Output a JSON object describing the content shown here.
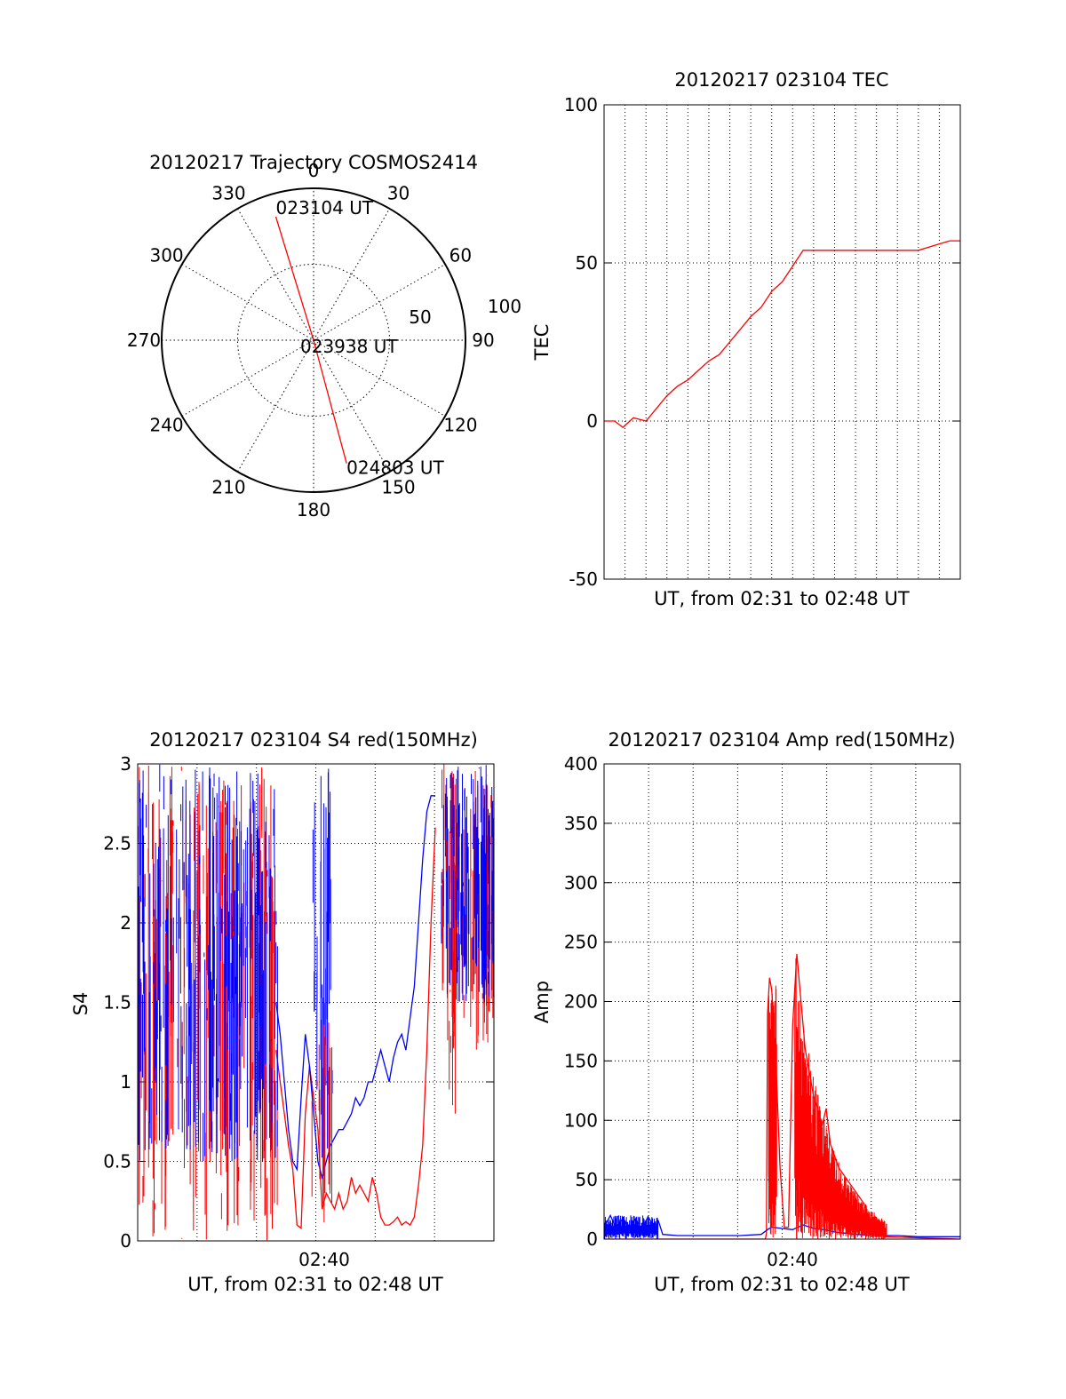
{
  "colors": {
    "red": "#ff0000",
    "blue": "#0000ff",
    "axis": "#000000",
    "grid": "#000000"
  },
  "chart_data": [
    {
      "type": "polar",
      "title": "20120217 Trajectory COSMOS2414",
      "azimuth_labels": [
        "0",
        "30",
        "60",
        "90",
        "120",
        "150",
        "180",
        "210",
        "240",
        "270",
        "300",
        "330"
      ],
      "radius_labels": [
        "50",
        "100"
      ],
      "radial_range": [
        0,
        100
      ],
      "points": [
        {
          "label": "023104 UT",
          "azimuth": 343,
          "zenith": 85
        },
        {
          "label": "023938 UT",
          "azimuth": 0,
          "zenith": 0
        },
        {
          "label": "024803 UT",
          "azimuth": 165,
          "zenith": 84
        }
      ],
      "grid": true
    },
    {
      "type": "line",
      "title": "20120217 023104 TEC",
      "xlabel": "UT, from 02:31 to 02:48 UT",
      "ylabel": "TEC",
      "ylim": [
        -50,
        100
      ],
      "yticks": [
        "100",
        "50",
        "0",
        "-50"
      ],
      "xlim_min": [
        0,
        17.0
      ],
      "grid": true,
      "series": [
        {
          "color": "red",
          "x": [
            0,
            0.5,
            0.9,
            1.4,
            2.0,
            2.5,
            3.0,
            3.5,
            4.0,
            4.5,
            5.0,
            5.5,
            6.0,
            6.5,
            7.0,
            7.5,
            8.0,
            8.5,
            9.0,
            9.5,
            10.0,
            10.5,
            11.0,
            11.5,
            12.0,
            12.5,
            13.0,
            13.5,
            14.0,
            14.5,
            15.0,
            15.5,
            16.0,
            16.5,
            17.0
          ],
          "y": [
            0,
            0,
            -2,
            1,
            0,
            4,
            8,
            11,
            13,
            16,
            19,
            21,
            25,
            29,
            33,
            36,
            41,
            44,
            49,
            54,
            54,
            54,
            54,
            54,
            54,
            54,
            54,
            54,
            54,
            54,
            54,
            55,
            56,
            57,
            57
          ]
        }
      ]
    },
    {
      "type": "line",
      "title": "20120217 023104 S4 red(150MHz)",
      "xlabel": "UT, from 02:31 to 02:48 UT",
      "ylabel": "S4",
      "ylim": [
        0,
        3
      ],
      "yticks": [
        "3",
        "2.5",
        "2",
        "1.5",
        "1",
        "0.5",
        "0"
      ],
      "xtick_label": "02:40",
      "grid": true,
      "series": [
        {
          "color": "red",
          "x": [
            6.6,
            6.8,
            7.0,
            7.2,
            7.4,
            7.6,
            7.8,
            8.0,
            8.2,
            8.4,
            8.6,
            8.8,
            9.0,
            9.2,
            9.4,
            9.6,
            9.8,
            10.0,
            10.2,
            10.4,
            10.6,
            10.8,
            11.0,
            11.2,
            11.4,
            11.6,
            11.8,
            12.0,
            12.2,
            12.4,
            12.6,
            12.8,
            13.0,
            13.2,
            13.4,
            13.6,
            13.8,
            14.0,
            14.2
          ],
          "y": [
            1.2,
            1.0,
            0.8,
            0.6,
            0.45,
            0.1,
            0.08,
            0.8,
            1.1,
            0.9,
            0.7,
            0.2,
            0.3,
            0.25,
            0.2,
            0.3,
            0.2,
            0.25,
            0.4,
            0.3,
            0.35,
            0.3,
            0.25,
            0.4,
            0.3,
            0.15,
            0.1,
            0.1,
            0.12,
            0.15,
            0.1,
            0.12,
            0.1,
            0.15,
            0.35,
            0.6,
            1.2,
            2.0,
            2.6
          ]
        },
        {
          "color": "blue",
          "x": [
            6.6,
            6.8,
            7.0,
            7.2,
            7.4,
            7.6,
            7.8,
            8.0,
            8.2,
            8.4,
            8.6,
            8.8,
            9.0,
            9.2,
            9.4,
            9.6,
            9.8,
            10.0,
            10.2,
            10.4,
            10.6,
            10.8,
            11.0,
            11.2,
            11.4,
            11.6,
            11.8,
            12.0,
            12.2,
            12.4,
            12.6,
            12.8,
            13.0,
            13.2,
            13.4,
            13.6,
            13.8,
            14.0,
            14.2
          ],
          "y": [
            1.5,
            1.3,
            1.0,
            0.7,
            0.5,
            0.45,
            0.9,
            1.3,
            1.1,
            0.8,
            0.5,
            0.4,
            0.5,
            0.6,
            0.65,
            0.7,
            0.7,
            0.75,
            0.8,
            0.9,
            0.85,
            0.9,
            1.0,
            1.0,
            1.1,
            1.2,
            1.1,
            1.0,
            1.15,
            1.25,
            1.3,
            1.2,
            1.4,
            1.6,
            2.0,
            2.4,
            2.7,
            2.8,
            2.8
          ]
        }
      ]
    },
    {
      "type": "line",
      "title": "20120217 023104 Amp red(150MHz)",
      "xlabel": "UT, from 02:31 to 02:48 UT",
      "ylabel": "Amp",
      "ylim": [
        0,
        400
      ],
      "yticks": [
        "400",
        "350",
        "300",
        "250",
        "200",
        "150",
        "100",
        "50",
        "0"
      ],
      "xtick_label": "02:40",
      "grid": true,
      "series": [
        {
          "color": "red",
          "x": [
            0,
            7.7,
            7.75,
            7.8,
            7.9,
            8.0,
            8.2,
            8.4,
            8.6,
            8.8,
            9.0,
            9.2,
            9.4,
            9.6,
            9.8,
            10.0,
            10.2,
            10.4,
            10.6,
            10.8,
            11.0,
            11.2,
            11.4,
            11.6,
            11.8,
            12.0,
            12.2,
            12.4,
            12.6,
            12.8,
            13.0,
            13.2,
            13.4,
            17.0
          ],
          "y": [
            0,
            0,
            5,
            190,
            220,
            210,
            150,
            60,
            10,
            10,
            180,
            240,
            200,
            160,
            140,
            120,
            110,
            95,
            110,
            80,
            70,
            60,
            55,
            50,
            45,
            40,
            35,
            30,
            20,
            15,
            10,
            5,
            2,
            0
          ]
        },
        {
          "color": "blue",
          "x": [
            0,
            0.3,
            0.6,
            0.9,
            1.2,
            1.5,
            1.8,
            2.1,
            2.4,
            2.6,
            2.8,
            3.5,
            4.5,
            5.5,
            6.5,
            7.5,
            7.8,
            8.0,
            8.5,
            9.0,
            9.5,
            10.0,
            10.5,
            11.0,
            11.5,
            12.0,
            13.0,
            14.0,
            15.0,
            16.0,
            17.0
          ],
          "y": [
            10,
            20,
            8,
            18,
            9,
            17,
            8,
            19,
            10,
            15,
            4,
            3,
            3,
            3,
            3,
            4,
            8,
            10,
            9,
            8,
            12,
            9,
            8,
            6,
            5,
            4,
            3,
            3,
            2,
            2,
            2
          ]
        }
      ]
    }
  ]
}
